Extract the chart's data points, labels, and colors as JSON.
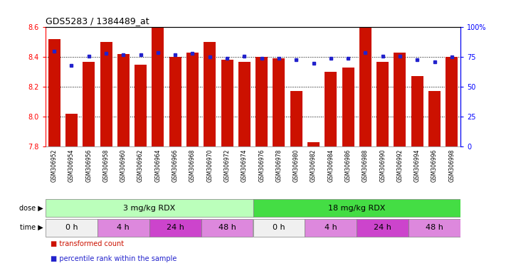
{
  "title": "GDS5283 / 1384489_at",
  "samples": [
    "GSM306952",
    "GSM306954",
    "GSM306956",
    "GSM306958",
    "GSM306960",
    "GSM306962",
    "GSM306964",
    "GSM306966",
    "GSM306968",
    "GSM306970",
    "GSM306972",
    "GSM306974",
    "GSM306976",
    "GSM306978",
    "GSM306980",
    "GSM306982",
    "GSM306984",
    "GSM306986",
    "GSM306988",
    "GSM306990",
    "GSM306992",
    "GSM306994",
    "GSM306996",
    "GSM306998"
  ],
  "bar_values": [
    8.52,
    8.02,
    8.37,
    8.5,
    8.42,
    8.35,
    8.6,
    8.4,
    8.43,
    8.5,
    8.38,
    8.37,
    8.4,
    8.39,
    8.17,
    7.83,
    8.3,
    8.33,
    8.6,
    8.37,
    8.43,
    8.27,
    8.17,
    8.4
  ],
  "percentile_values": [
    80,
    68,
    76,
    78,
    77,
    77,
    79,
    77,
    78,
    75,
    74,
    76,
    74,
    74,
    73,
    70,
    74,
    74,
    79,
    76,
    76,
    73,
    71,
    75
  ],
  "ymin": 7.8,
  "ymax": 8.6,
  "yticks": [
    7.8,
    8.0,
    8.2,
    8.4,
    8.6
  ],
  "right_yticks": [
    0,
    25,
    50,
    75,
    100
  ],
  "bar_color": "#cc1100",
  "percentile_color": "#2222cc",
  "tick_bg_color": "#d3d3d3",
  "plot_bg_color": "#ffffff",
  "dose_groups": [
    {
      "label": "3 mg/kg RDX",
      "start": 0,
      "end": 12,
      "color": "#bbffbb"
    },
    {
      "label": "18 mg/kg RDX",
      "start": 12,
      "end": 24,
      "color": "#44dd44"
    }
  ],
  "time_groups": [
    {
      "label": "0 h",
      "start": 0,
      "end": 3,
      "color": "#f0f0f0"
    },
    {
      "label": "4 h",
      "start": 3,
      "end": 6,
      "color": "#dd88dd"
    },
    {
      "label": "24 h",
      "start": 6,
      "end": 9,
      "color": "#cc44cc"
    },
    {
      "label": "48 h",
      "start": 9,
      "end": 12,
      "color": "#dd88dd"
    },
    {
      "label": "0 h",
      "start": 12,
      "end": 15,
      "color": "#f0f0f0"
    },
    {
      "label": "4 h",
      "start": 15,
      "end": 18,
      "color": "#dd88dd"
    },
    {
      "label": "24 h",
      "start": 18,
      "end": 21,
      "color": "#cc44cc"
    },
    {
      "label": "48 h",
      "start": 21,
      "end": 24,
      "color": "#dd88dd"
    }
  ],
  "legend_items": [
    {
      "label": "transformed count",
      "color": "#cc1100"
    },
    {
      "label": "percentile rank within the sample",
      "color": "#2222cc"
    }
  ]
}
